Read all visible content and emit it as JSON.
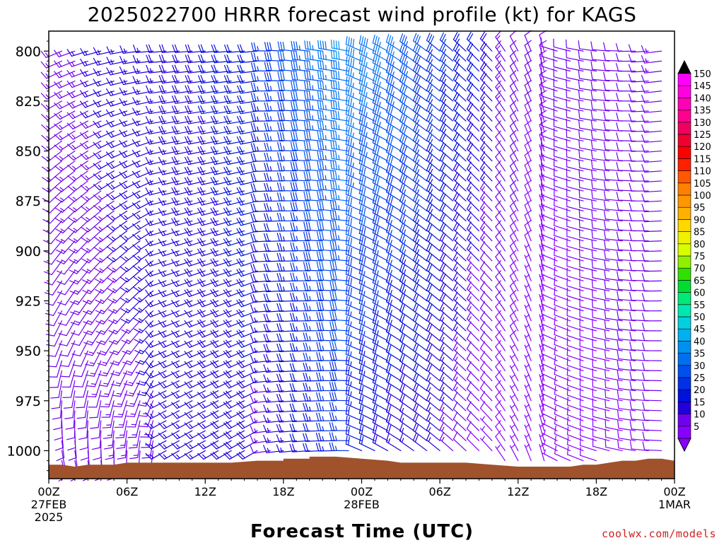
{
  "chart_data": {
    "type": "wind-barb-profile",
    "title": "2025022700 HRRR forecast wind profile (kt) for KAGS",
    "xlabel": "Forecast Time (UTC)",
    "ylabel": "",
    "credit": "coolwx.com/models",
    "x_range_hours": [
      0,
      48
    ],
    "y_range_hPa": [
      1014,
      790
    ],
    "y_ticks": [
      {
        "value": 800,
        "label": "800"
      },
      {
        "value": 825,
        "label": "825"
      },
      {
        "value": 850,
        "label": "850"
      },
      {
        "value": 875,
        "label": "875"
      },
      {
        "value": 900,
        "label": "900"
      },
      {
        "value": 925,
        "label": "925"
      },
      {
        "value": 950,
        "label": "950"
      },
      {
        "value": 975,
        "label": "975"
      },
      {
        "value": 1000,
        "label": "1000"
      }
    ],
    "x_ticks": [
      {
        "hour": 0,
        "label": "00Z",
        "sub1": "27FEB",
        "sub2": "2025"
      },
      {
        "hour": 6,
        "label": "06Z",
        "sub1": "",
        "sub2": ""
      },
      {
        "hour": 12,
        "label": "12Z",
        "sub1": "",
        "sub2": ""
      },
      {
        "hour": 18,
        "label": "18Z",
        "sub1": "",
        "sub2": ""
      },
      {
        "hour": 24,
        "label": "00Z",
        "sub1": "28FEB",
        "sub2": ""
      },
      {
        "hour": 30,
        "label": "06Z",
        "sub1": "",
        "sub2": ""
      },
      {
        "hour": 36,
        "label": "12Z",
        "sub1": "",
        "sub2": ""
      },
      {
        "hour": 42,
        "label": "18Z",
        "sub1": "",
        "sub2": ""
      },
      {
        "hour": 48,
        "label": "00Z",
        "sub1": "1MAR",
        "sub2": ""
      }
    ],
    "colorbar": {
      "labels": [
        "5",
        "10",
        "15",
        "20",
        "25",
        "30",
        "35",
        "40",
        "45",
        "50",
        "55",
        "60",
        "65",
        "70",
        "75",
        "80",
        "85",
        "90",
        "95",
        "100",
        "105",
        "110",
        "115",
        "120",
        "125",
        "130",
        "135",
        "140",
        "145",
        "150"
      ],
      "colors": [
        "#8800ff",
        "#7000ee",
        "#2000dd",
        "#0010dd",
        "#0030e8",
        "#0050f0",
        "#0070f0",
        "#0090f0",
        "#00b0f0",
        "#00d0e0",
        "#00e8b0",
        "#00e878",
        "#00dd30",
        "#30e000",
        "#90f000",
        "#d8ff00",
        "#f0f000",
        "#ffd800",
        "#ffb000",
        "#ff9800",
        "#ff8000",
        "#ff5800",
        "#ff2000",
        "#ff0000",
        "#f00030",
        "#f00060",
        "#ff0090",
        "#ff00b8",
        "#ff00e0",
        "#ff00ff"
      ],
      "min_arrow": "#8800ff",
      "max_arrow": "#000000"
    },
    "terrain": {
      "color": "#a0522d",
      "surface_pressure": [
        [
          0,
          1007
        ],
        [
          1,
          1007
        ],
        [
          2,
          1008
        ],
        [
          3,
          1007
        ],
        [
          5,
          1007
        ],
        [
          6,
          1006
        ],
        [
          8,
          1006
        ],
        [
          10,
          1006
        ],
        [
          12,
          1006
        ],
        [
          14,
          1006
        ],
        [
          16,
          1005
        ],
        [
          18,
          1005
        ],
        [
          18,
          1004
        ],
        [
          20,
          1004
        ],
        [
          20,
          1003
        ],
        [
          22,
          1003
        ],
        [
          24,
          1004
        ],
        [
          26,
          1005
        ],
        [
          27,
          1006
        ],
        [
          28,
          1006
        ],
        [
          30,
          1006
        ],
        [
          32,
          1006
        ],
        [
          34,
          1007
        ],
        [
          36,
          1008
        ],
        [
          38,
          1008
        ],
        [
          40,
          1008
        ],
        [
          41,
          1007
        ],
        [
          42,
          1007
        ],
        [
          43,
          1006
        ],
        [
          44,
          1005
        ],
        [
          45,
          1005
        ],
        [
          46,
          1004
        ],
        [
          47,
          1004
        ],
        [
          48,
          1005
        ]
      ]
    },
    "barbs": {
      "times_hours": [
        1,
        2,
        3,
        4,
        5,
        6,
        7,
        8,
        9,
        10,
        11,
        12,
        13,
        14,
        15,
        16,
        17,
        18,
        19,
        20,
        21,
        22,
        23,
        24,
        25,
        26,
        27,
        28,
        29,
        30,
        31,
        32,
        33,
        34,
        35,
        36,
        37,
        38,
        39,
        40,
        41,
        42,
        43,
        44,
        45,
        46,
        47
      ],
      "levels_hPa": [
        800,
        805,
        810,
        815,
        820,
        825,
        830,
        835,
        840,
        845,
        850,
        855,
        860,
        865,
        870,
        875,
        880,
        885,
        890,
        895,
        900,
        905,
        910,
        915,
        920,
        925,
        930,
        935,
        940,
        945,
        950,
        955,
        960,
        965,
        970,
        975,
        980,
        985,
        990,
        995,
        1000,
        1005
      ],
      "description": "Wind barbs; speed in kt, direction in degrees (from)",
      "phase_breaks_hours": [
        9,
        13,
        17,
        21,
        25,
        28,
        31,
        34,
        36,
        38,
        42
      ]
    }
  }
}
